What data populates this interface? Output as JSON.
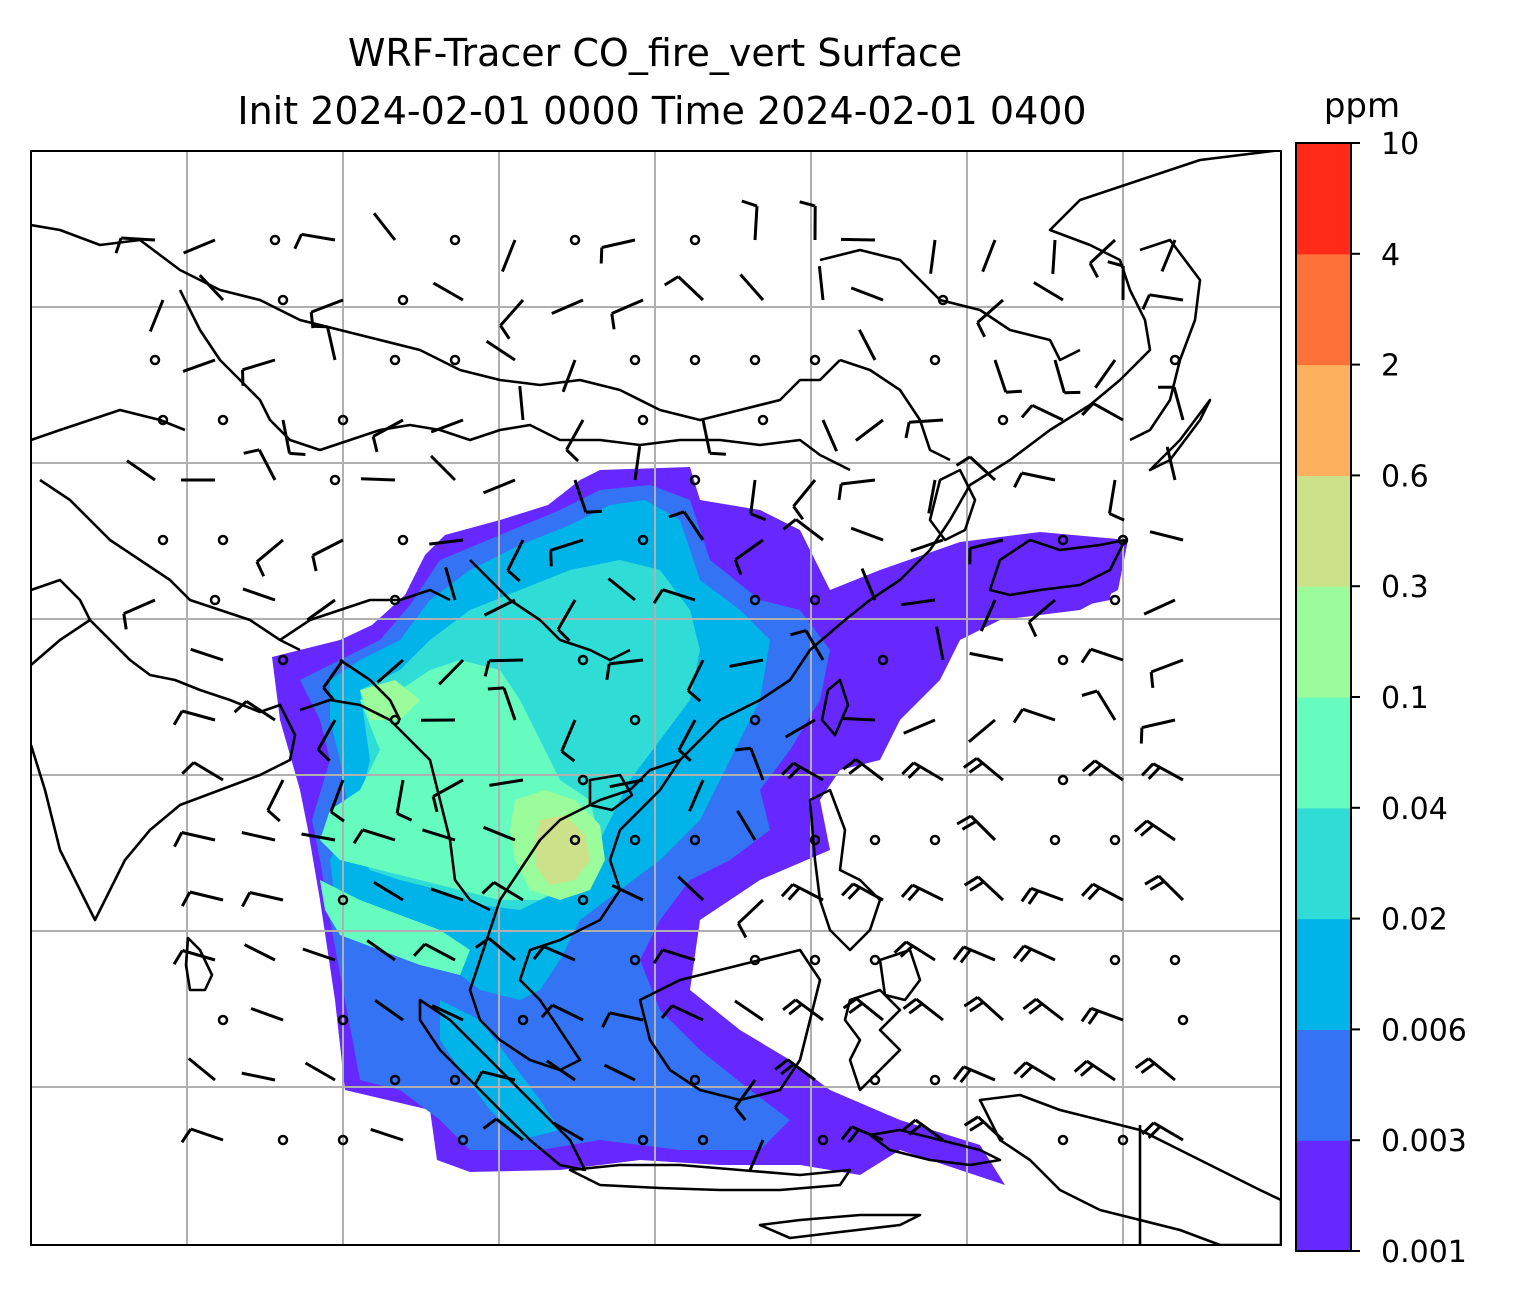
{
  "title": {
    "line1": "WRF-Tracer CO_fire_vert Surface",
    "line2": "Init 2024-02-01 0000 Time 2024-02-01 0400"
  },
  "colorbar": {
    "unit": "ppm",
    "ticks": [
      "0.001",
      "0.003",
      "0.006",
      "0.02",
      "0.04",
      "0.1",
      "0.3",
      "0.6",
      "2",
      "4",
      "10"
    ],
    "colors": [
      "#6628fe",
      "#3473f4",
      "#00b4e9",
      "#30dcd6",
      "#66fcc0",
      "#9afc9a",
      "#cce18a",
      "#fdb15f",
      "#fe7239",
      "#ff2a18"
    ]
  },
  "map": {
    "fill_colors": {
      "violet": "#6628fe",
      "blue": "#3473f4",
      "cyan": "#00b4e9",
      "teal": "#30dcd6",
      "aqua": "#66fcc0",
      "lightgreen": "#9afc9a",
      "khaki": "#cce18a",
      "orange": "#fdb15f"
    },
    "gridlines": true,
    "wind_barbs": true
  }
}
